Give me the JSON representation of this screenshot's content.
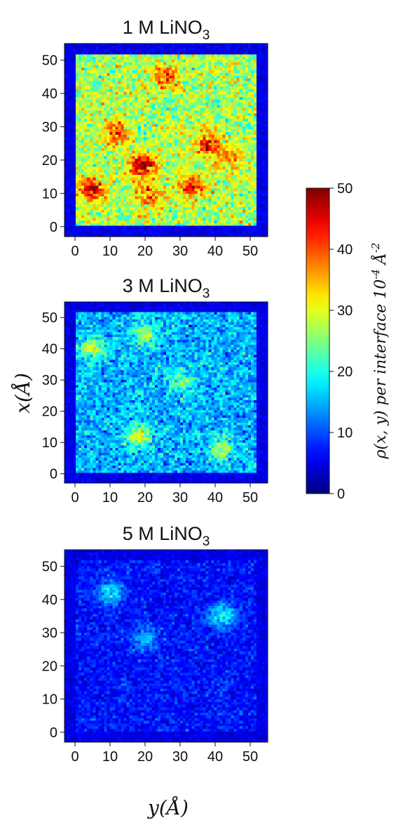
{
  "chart_data": [
    {
      "type": "heatmap",
      "title_main": "1 M LiNO",
      "title_sub": "3",
      "x_ticks": [
        "0",
        "10",
        "20",
        "30",
        "40",
        "50"
      ],
      "y_ticks": [
        "0",
        "10",
        "20",
        "30",
        "40",
        "50"
      ],
      "xlim": [
        -3,
        55
      ],
      "ylim": [
        -3,
        55
      ],
      "mean_density": 27,
      "spread": 6,
      "hotspots": [
        {
          "y": 19,
          "x": 18,
          "value": 50
        },
        {
          "y": 5,
          "x": 11,
          "value": 48
        },
        {
          "y": 33,
          "x": 12,
          "value": 45
        },
        {
          "y": 38,
          "x": 25,
          "value": 44
        },
        {
          "y": 12,
          "x": 28,
          "value": 42
        },
        {
          "y": 26,
          "x": 45,
          "value": 40
        },
        {
          "y": 21,
          "x": 9,
          "value": 40
        },
        {
          "y": 44,
          "x": 20,
          "value": 38
        }
      ]
    },
    {
      "type": "heatmap",
      "title_main": "3 M LiNO",
      "title_sub": "3",
      "x_ticks": [
        "0",
        "10",
        "20",
        "30",
        "40",
        "50"
      ],
      "y_ticks": [
        "0",
        "10",
        "20",
        "30",
        "40",
        "50"
      ],
      "xlim": [
        -3,
        55
      ],
      "ylim": [
        -3,
        55
      ],
      "mean_density": 15,
      "spread": 5,
      "hotspots": [
        {
          "y": 5,
          "x": 40,
          "value": 28
        },
        {
          "y": 20,
          "x": 45,
          "value": 27
        },
        {
          "y": 18,
          "x": 12,
          "value": 30
        },
        {
          "y": 42,
          "x": 8,
          "value": 27
        },
        {
          "y": 30,
          "x": 30,
          "value": 26
        }
      ]
    },
    {
      "type": "heatmap",
      "title_main": "5 M LiNO",
      "title_sub": "3",
      "x_ticks": [
        "0",
        "10",
        "20",
        "30",
        "40",
        "50"
      ],
      "y_ticks": [
        "0",
        "10",
        "20",
        "30",
        "40",
        "50"
      ],
      "xlim": [
        -3,
        55
      ],
      "ylim": [
        -3,
        55
      ],
      "mean_density": 7,
      "spread": 3,
      "hotspots": [
        {
          "y": 10,
          "x": 42,
          "value": 18
        },
        {
          "y": 42,
          "x": 35,
          "value": 20
        },
        {
          "y": 20,
          "x": 28,
          "value": 16
        }
      ]
    }
  ],
  "xlabel": "y(Å)",
  "ylabel": "x(Å)",
  "colorbar": {
    "label": "ρ(x, y) per interface 10",
    "label_exp": "-4",
    "label_unit": " Å",
    "label_unit_exp": "-2",
    "range": [
      0,
      50
    ],
    "ticks": [
      "0",
      "10",
      "20",
      "30",
      "40",
      "50"
    ],
    "colormap": "jet"
  }
}
